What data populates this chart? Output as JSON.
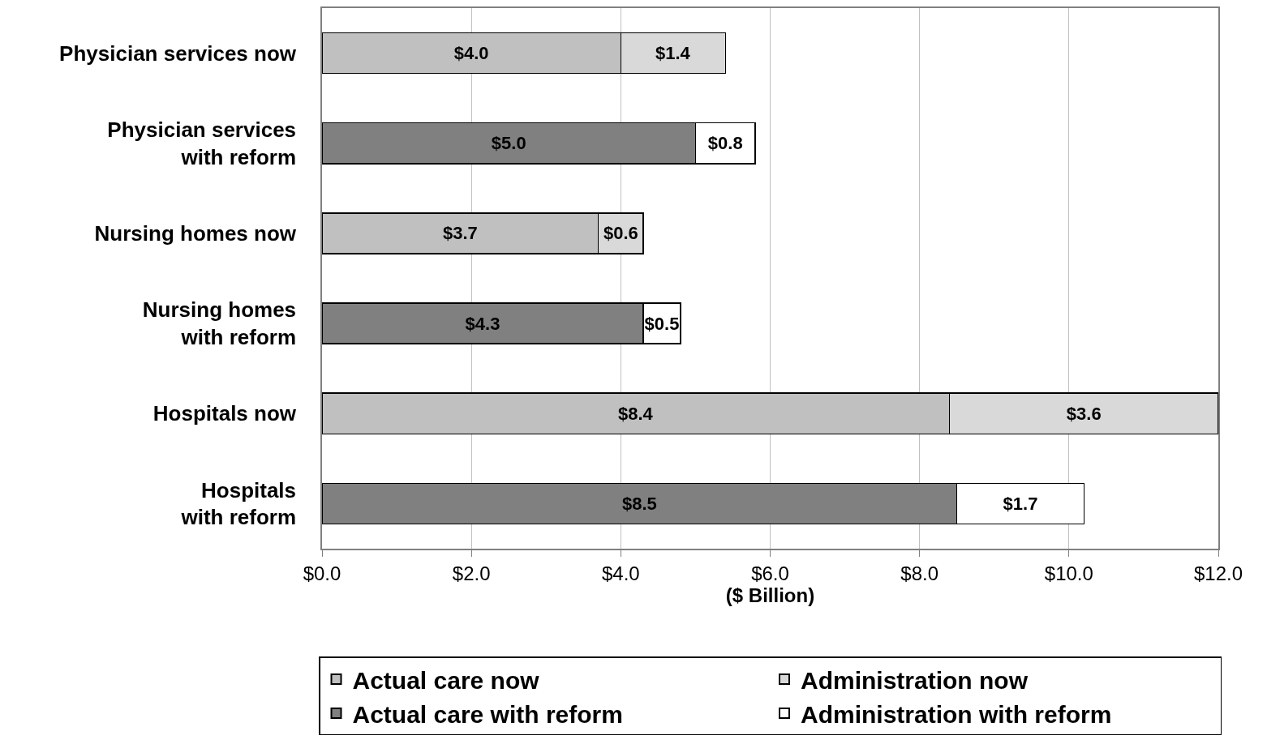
{
  "chart_data": {
    "type": "bar",
    "orientation": "horizontal",
    "stacked": true,
    "categories": [
      "Physician services now",
      "Physician services\nwith reform",
      "Nursing homes now",
      "Nursing homes\nwith reform",
      "Hospitals now",
      "Hospitals\nwith reform"
    ],
    "series": [
      {
        "name": "Actual care now",
        "color": "#c0c0c0",
        "values": [
          4.0,
          null,
          3.7,
          null,
          8.4,
          null
        ],
        "value_labels": [
          "$4.0",
          null,
          "$3.7",
          null,
          "$8.4",
          null
        ]
      },
      {
        "name": "Administration now",
        "color": "#d9d9d9",
        "values": [
          1.4,
          null,
          0.6,
          null,
          3.6,
          null
        ],
        "value_labels": [
          "$1.4",
          null,
          "$0.6",
          null,
          "$3.6",
          null
        ]
      },
      {
        "name": "Actual care with reform",
        "color": "#808080",
        "values": [
          null,
          5.0,
          null,
          4.3,
          null,
          8.5
        ],
        "value_labels": [
          null,
          "$5.0",
          null,
          "$4.3",
          null,
          "$8.5"
        ]
      },
      {
        "name": "Administration with reform",
        "color": "#ffffff",
        "values": [
          null,
          0.8,
          null,
          0.5,
          null,
          1.7
        ],
        "value_labels": [
          null,
          "$0.8",
          null,
          "$0.5",
          null,
          "$1.7"
        ]
      }
    ],
    "xlabel": "($ Billion)",
    "xlim": [
      0,
      12
    ],
    "xticks": [
      {
        "value": 0,
        "label": "$0.0"
      },
      {
        "value": 2,
        "label": "$2.0"
      },
      {
        "value": 4,
        "label": "$4.0"
      },
      {
        "value": 6,
        "label": "$6.0"
      },
      {
        "value": 8,
        "label": "$8.0"
      },
      {
        "value": 10,
        "label": "$10.0"
      },
      {
        "value": 12,
        "label": "$12.0"
      }
    ],
    "grid": "x",
    "legend": "bottom"
  }
}
